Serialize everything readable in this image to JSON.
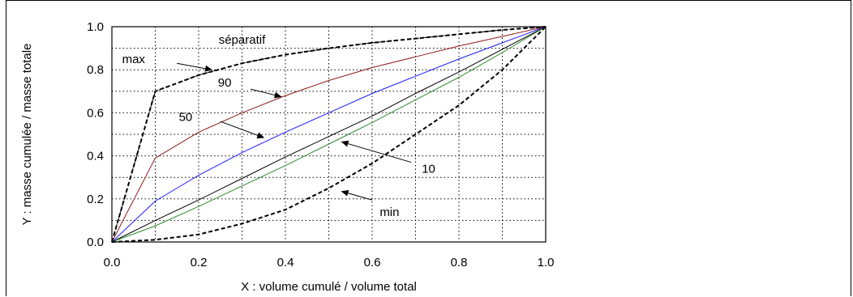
{
  "chart_data": {
    "type": "line",
    "title": "",
    "xlabel": "X : volume cumulé / volume total",
    "ylabel": "Y : masse cumulée / masse totale",
    "xlim": [
      0,
      1
    ],
    "ylim": [
      0,
      1
    ],
    "xticks": [
      "0.0",
      "0.2",
      "0.4",
      "0.6",
      "0.8",
      "1.0"
    ],
    "yticks": [
      "0.0",
      "0.2",
      "0.4",
      "0.6",
      "0.8",
      "1.0"
    ],
    "grid": true,
    "series": [
      {
        "name": "max",
        "color": "#000000",
        "style": "dashed-bold",
        "x": [
          0,
          0.1,
          0.2,
          0.3,
          0.4,
          0.5,
          0.6,
          0.7,
          0.8,
          0.9,
          1.0
        ],
        "y": [
          0,
          0.7,
          0.775,
          0.83,
          0.87,
          0.9,
          0.925,
          0.945,
          0.965,
          0.985,
          1.0
        ]
      },
      {
        "name": "séparatif",
        "color": "#000000",
        "style": "dashed-thin",
        "x": [
          0,
          0.1,
          0.2,
          0.3,
          0.4,
          0.5,
          0.6,
          0.7,
          0.8,
          0.9,
          1.0
        ],
        "y": [
          0,
          0.7,
          0.775,
          0.83,
          0.87,
          0.9,
          0.925,
          0.945,
          0.965,
          0.985,
          1.0
        ]
      },
      {
        "name": "90",
        "color": "#8b1a1a",
        "style": "solid",
        "x": [
          0,
          0.1,
          0.2,
          0.3,
          0.4,
          0.5,
          0.6,
          0.7,
          0.8,
          0.9,
          1.0
        ],
        "y": [
          0,
          0.39,
          0.51,
          0.6,
          0.68,
          0.75,
          0.81,
          0.86,
          0.91,
          0.955,
          1.0
        ]
      },
      {
        "name": "50",
        "color": "#1a1aff",
        "style": "solid",
        "x": [
          0,
          0.1,
          0.2,
          0.3,
          0.4,
          0.5,
          0.6,
          0.7,
          0.8,
          0.9,
          1.0
        ],
        "y": [
          0,
          0.19,
          0.31,
          0.415,
          0.51,
          0.6,
          0.69,
          0.77,
          0.85,
          0.925,
          1.0
        ]
      },
      {
        "name": "10",
        "color": "#000000",
        "style": "solid",
        "x": [
          0,
          0.1,
          0.2,
          0.3,
          0.4,
          0.5,
          0.6,
          0.7,
          0.8,
          0.9,
          1.0
        ],
        "y": [
          0,
          0.1,
          0.195,
          0.295,
          0.395,
          0.49,
          0.585,
          0.69,
          0.79,
          0.895,
          1.0
        ]
      },
      {
        "name": "",
        "color": "#2e8b2e",
        "style": "solid",
        "x": [
          0,
          0.1,
          0.2,
          0.3,
          0.4,
          0.5,
          0.6,
          0.7,
          0.8,
          0.9,
          1.0
        ],
        "y": [
          0,
          0.075,
          0.165,
          0.26,
          0.355,
          0.455,
          0.555,
          0.66,
          0.765,
          0.88,
          1.0
        ]
      },
      {
        "name": "min",
        "color": "#000000",
        "style": "dashed-bold",
        "x": [
          0,
          0.1,
          0.2,
          0.3,
          0.4,
          0.5,
          0.6,
          0.7,
          0.8,
          0.9,
          1.0
        ],
        "y": [
          0,
          0.01,
          0.035,
          0.085,
          0.15,
          0.25,
          0.365,
          0.5,
          0.635,
          0.8,
          1.0
        ]
      }
    ],
    "annotations": [
      {
        "text": "séparatif",
        "x": 0.3,
        "y": 0.94
      },
      {
        "text": "max",
        "x": 0.05,
        "y": 0.85
      },
      {
        "text": "90",
        "x": 0.26,
        "y": 0.74
      },
      {
        "text": "50",
        "x": 0.17,
        "y": 0.58
      },
      {
        "text": "10",
        "x": 0.73,
        "y": 0.34
      },
      {
        "text": "min",
        "x": 0.64,
        "y": 0.14
      }
    ],
    "arrows": [
      {
        "from": [
          0.15,
          0.83
        ],
        "to": [
          0.23,
          0.8
        ]
      },
      {
        "from": [
          0.32,
          0.71
        ],
        "to": [
          0.39,
          0.675
        ]
      },
      {
        "from": [
          0.25,
          0.56
        ],
        "to": [
          0.35,
          0.485
        ]
      },
      {
        "from": [
          0.69,
          0.37
        ],
        "to": [
          0.53,
          0.465
        ]
      },
      {
        "from": [
          0.6,
          0.195
        ],
        "to": [
          0.53,
          0.235
        ]
      }
    ]
  }
}
